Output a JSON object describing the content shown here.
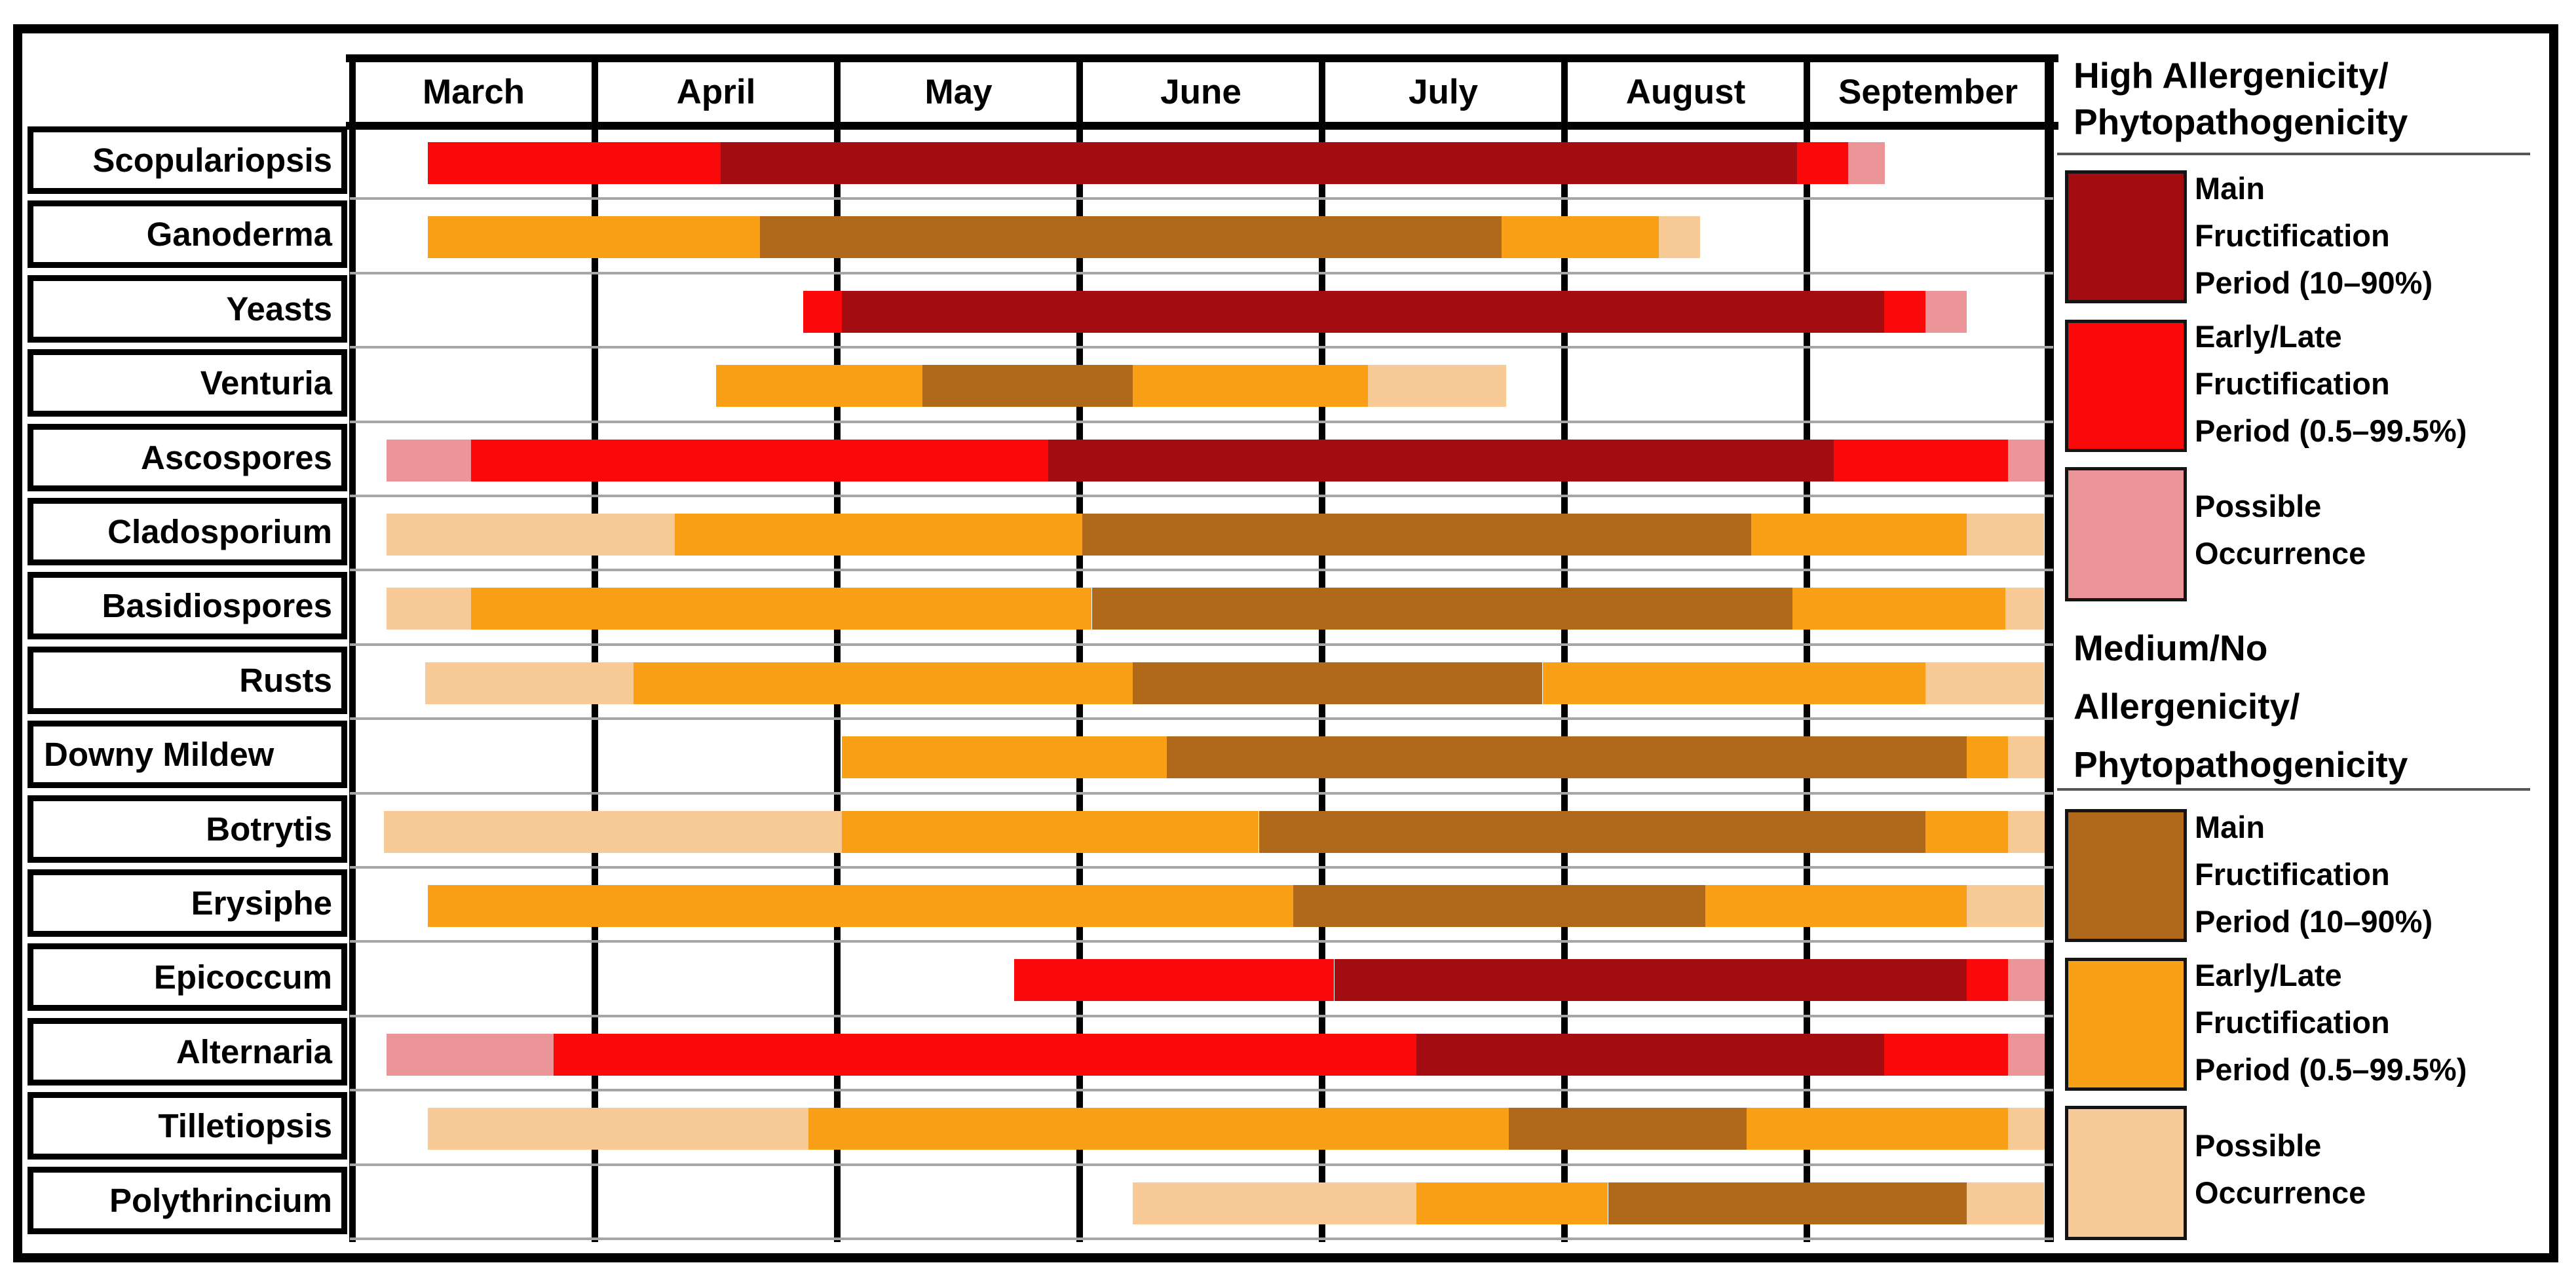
{
  "legend": {
    "high": {
      "line1": "High Allergenicity/",
      "line2": "Phytopathogenicity"
    },
    "medium": {
      "line1": "Medium/No",
      "line2": "Allergenicity/",
      "line3": "Phytopathogenicity"
    },
    "labels": {
      "main": [
        "Main",
        "Fructification",
        "Period (10–90%)"
      ],
      "early": [
        "Early/Late",
        "Fructification",
        "Period (0.5–99.5%)"
      ],
      "possible": [
        "Possible",
        "Occurrence"
      ]
    },
    "entries": [
      {
        "kind": "main_high",
        "label_key": "main"
      },
      {
        "kind": "early_high",
        "label_key": "early"
      },
      {
        "kind": "possible_high",
        "label_key": "possible"
      },
      {
        "kind": "main_med",
        "label_key": "main"
      },
      {
        "kind": "early_med",
        "label_key": "early"
      },
      {
        "kind": "possible_med",
        "label_key": "possible"
      }
    ]
  },
  "colors": {
    "main_high": "#A30D11",
    "early_high": "#F90909",
    "possible_high": "#EC9599",
    "main_med": "#B0691B",
    "early_med": "#F9A016",
    "possible_med": "#F7CA96",
    "separator": "#A6A6A6",
    "border": "#000000"
  },
  "chart_data": {
    "type": "bar",
    "subtype": "gantt-phenology-calendar",
    "title": "",
    "xlabel": "",
    "ylabel": "",
    "x_axis": {
      "unit": "month",
      "categories": [
        "March",
        "April",
        "May",
        "June",
        "July",
        "August",
        "September"
      ],
      "domain": [
        0,
        7
      ]
    },
    "legend_position": "right",
    "kinds": {
      "main_high": "Main Fructification Period (10–90%) — High Allergenicity/Phytopathogenicity",
      "early_high": "Early/Late Fructification Period (0.5–99.5%) — High Allergenicity/Phytopathogenicity",
      "possible_high": "Possible Occurrence — High Allergenicity/Phytopathogenicity",
      "main_med": "Main Fructification Period (10–90%) — Medium/No Allergenicity/Phytopathogenicity",
      "early_med": "Early/Late Fructification Period (0.5–99.5%) — Medium/No Allergenicity/Phytopathogenicity",
      "possible_med": "Possible Occurrence — Medium/No Allergenicity/Phytopathogenicity"
    },
    "categories": [
      "Scopulariopsis",
      "Ganoderma",
      "Yeasts",
      "Venturia",
      "Ascospores",
      "Cladosporium",
      "Basidiospores",
      "Rusts",
      "Downy Mildew",
      "Botrytis",
      "Erysiphe",
      "Epicoccum",
      "Alternaria",
      "Tilletiopsis",
      "Polythrincium"
    ],
    "series": [
      {
        "name": "Scopulariopsis",
        "segments": [
          {
            "kind": "early_high",
            "start": 0.31,
            "end": 1.52
          },
          {
            "kind": "main_high",
            "start": 1.52,
            "end": 5.96
          },
          {
            "kind": "early_high",
            "start": 5.96,
            "end": 6.17
          },
          {
            "kind": "possible_high",
            "start": 6.17,
            "end": 6.32
          }
        ]
      },
      {
        "name": "Ganoderma",
        "segments": [
          {
            "kind": "early_med",
            "start": 0.31,
            "end": 1.68
          },
          {
            "kind": "main_med",
            "start": 1.68,
            "end": 4.74
          },
          {
            "kind": "early_med",
            "start": 4.74,
            "end": 5.39
          },
          {
            "kind": "possible_med",
            "start": 5.39,
            "end": 5.56
          }
        ]
      },
      {
        "name": "Yeasts",
        "segments": [
          {
            "kind": "early_high",
            "start": 1.86,
            "end": 2.02
          },
          {
            "kind": "main_high",
            "start": 2.02,
            "end": 6.32
          },
          {
            "kind": "early_high",
            "start": 6.32,
            "end": 6.49
          },
          {
            "kind": "possible_high",
            "start": 6.49,
            "end": 6.66
          }
        ]
      },
      {
        "name": "Venturia",
        "segments": [
          {
            "kind": "early_med",
            "start": 1.5,
            "end": 2.35
          },
          {
            "kind": "main_med",
            "start": 2.35,
            "end": 3.22
          },
          {
            "kind": "early_med",
            "start": 3.22,
            "end": 4.19
          },
          {
            "kind": "possible_med",
            "start": 4.19,
            "end": 4.76
          }
        ]
      },
      {
        "name": "Ascospores",
        "segments": [
          {
            "kind": "possible_high",
            "start": 0.14,
            "end": 0.49
          },
          {
            "kind": "early_high",
            "start": 0.49,
            "end": 2.87
          },
          {
            "kind": "main_high",
            "start": 2.87,
            "end": 6.11
          },
          {
            "kind": "early_high",
            "start": 6.11,
            "end": 6.83
          },
          {
            "kind": "possible_high",
            "start": 6.83,
            "end": 6.98
          }
        ]
      },
      {
        "name": "Cladosporium",
        "segments": [
          {
            "kind": "possible_med",
            "start": 0.14,
            "end": 1.33
          },
          {
            "kind": "early_med",
            "start": 1.33,
            "end": 3.01
          },
          {
            "kind": "main_med",
            "start": 3.01,
            "end": 5.77
          },
          {
            "kind": "early_med",
            "start": 5.77,
            "end": 6.66
          },
          {
            "kind": "possible_med",
            "start": 6.66,
            "end": 6.98
          }
        ]
      },
      {
        "name": "Basidiospores",
        "segments": [
          {
            "kind": "possible_med",
            "start": 0.14,
            "end": 0.49
          },
          {
            "kind": "early_med",
            "start": 0.49,
            "end": 3.05
          },
          {
            "kind": "main_med",
            "start": 3.05,
            "end": 5.94
          },
          {
            "kind": "early_med",
            "start": 5.94,
            "end": 6.82
          },
          {
            "kind": "possible_med",
            "start": 6.82,
            "end": 6.98
          }
        ]
      },
      {
        "name": "Rusts",
        "segments": [
          {
            "kind": "possible_med",
            "start": 0.3,
            "end": 1.16
          },
          {
            "kind": "early_med",
            "start": 1.16,
            "end": 3.22
          },
          {
            "kind": "main_med",
            "start": 3.22,
            "end": 4.91
          },
          {
            "kind": "early_med",
            "start": 4.91,
            "end": 6.49
          },
          {
            "kind": "possible_med",
            "start": 6.49,
            "end": 6.98
          }
        ]
      },
      {
        "name": "Downy Mildew",
        "segments": [
          {
            "kind": "early_med",
            "start": 2.02,
            "end": 3.36
          },
          {
            "kind": "main_med",
            "start": 3.36,
            "end": 6.66
          },
          {
            "kind": "early_med",
            "start": 6.66,
            "end": 6.83
          },
          {
            "kind": "possible_med",
            "start": 6.83,
            "end": 6.98
          }
        ]
      },
      {
        "name": "Botrytis",
        "segments": [
          {
            "kind": "possible_med",
            "start": 0.13,
            "end": 2.02
          },
          {
            "kind": "early_med",
            "start": 2.02,
            "end": 3.74
          },
          {
            "kind": "main_med",
            "start": 3.74,
            "end": 6.49
          },
          {
            "kind": "early_med",
            "start": 6.49,
            "end": 6.83
          },
          {
            "kind": "possible_med",
            "start": 6.83,
            "end": 6.98
          }
        ]
      },
      {
        "name": "Erysiphe",
        "segments": [
          {
            "kind": "early_med",
            "start": 0.31,
            "end": 3.88
          },
          {
            "kind": "main_med",
            "start": 3.88,
            "end": 5.58
          },
          {
            "kind": "early_med",
            "start": 5.58,
            "end": 6.66
          },
          {
            "kind": "possible_med",
            "start": 6.66,
            "end": 6.98
          }
        ]
      },
      {
        "name": "Epicoccum",
        "segments": [
          {
            "kind": "early_high",
            "start": 2.73,
            "end": 4.05
          },
          {
            "kind": "main_high",
            "start": 4.05,
            "end": 6.66
          },
          {
            "kind": "early_high",
            "start": 6.66,
            "end": 6.83
          },
          {
            "kind": "possible_high",
            "start": 6.83,
            "end": 6.98
          }
        ]
      },
      {
        "name": "Alternaria",
        "segments": [
          {
            "kind": "possible_high",
            "start": 0.14,
            "end": 0.83
          },
          {
            "kind": "early_high",
            "start": 0.83,
            "end": 4.39
          },
          {
            "kind": "main_high",
            "start": 4.39,
            "end": 6.32
          },
          {
            "kind": "early_high",
            "start": 6.32,
            "end": 6.83
          },
          {
            "kind": "possible_high",
            "start": 6.83,
            "end": 6.98
          }
        ]
      },
      {
        "name": "Tilletiopsis",
        "segments": [
          {
            "kind": "possible_med",
            "start": 0.31,
            "end": 1.88
          },
          {
            "kind": "early_med",
            "start": 1.88,
            "end": 4.77
          },
          {
            "kind": "main_med",
            "start": 4.77,
            "end": 5.75
          },
          {
            "kind": "early_med",
            "start": 5.75,
            "end": 6.83
          },
          {
            "kind": "possible_med",
            "start": 6.83,
            "end": 6.98
          }
        ]
      },
      {
        "name": "Polythrincium",
        "segments": [
          {
            "kind": "possible_med",
            "start": 3.22,
            "end": 4.39
          },
          {
            "kind": "early_med",
            "start": 4.39,
            "end": 5.18
          },
          {
            "kind": "main_med",
            "start": 5.18,
            "end": 6.66
          },
          {
            "kind": "possible_med",
            "start": 6.66,
            "end": 6.98
          }
        ]
      }
    ]
  }
}
